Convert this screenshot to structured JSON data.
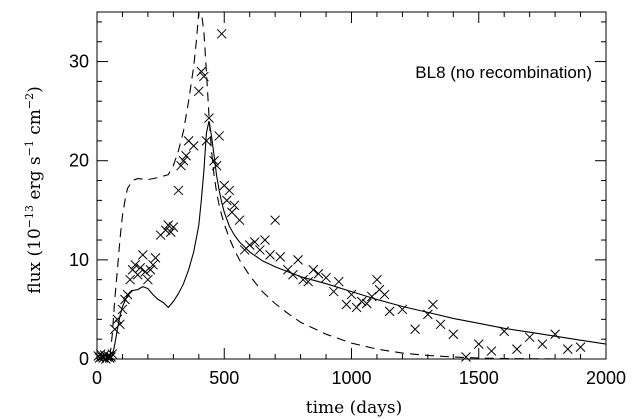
{
  "chart_data": {
    "type": "line",
    "title": "",
    "annotation": "BL8 (no recombination)",
    "xlabel": "time (days)",
    "ylabel": {
      "base": "flux (10",
      "exp1": "−13",
      "mid1": " erg s",
      "exp2": "−1",
      "mid2": " cm",
      "exp3": "−2",
      "tail": ")"
    },
    "xlim": [
      0,
      2000
    ],
    "ylim": [
      0,
      35
    ],
    "xticks": [
      0,
      500,
      1000,
      1500,
      2000
    ],
    "yticks": [
      0,
      10,
      20,
      30
    ],
    "grid": false,
    "series": [
      {
        "style": "solid",
        "x": [
          0,
          50,
          60,
          70,
          80,
          90,
          100,
          120,
          140,
          160,
          180,
          200,
          220,
          240,
          260,
          280,
          300,
          320,
          340,
          360,
          380,
          400,
          410,
          420,
          430,
          440,
          450,
          460,
          470,
          480,
          490,
          500,
          520,
          540,
          560,
          580,
          600,
          650,
          700,
          750,
          800,
          900,
          1000,
          1100,
          1200,
          1300,
          1400,
          1500,
          1600,
          1700,
          1800,
          1900,
          2000
        ],
        "y": [
          0,
          0,
          0.3,
          1.5,
          3.0,
          4.3,
          5.3,
          6.4,
          6.9,
          7.0,
          7.3,
          7.1,
          6.5,
          6.0,
          5.7,
          5.2,
          5.8,
          6.6,
          7.6,
          9.0,
          10.8,
          13.5,
          16.0,
          19.0,
          22.8,
          24.0,
          22.5,
          20.5,
          18.5,
          17.0,
          15.8,
          14.8,
          13.4,
          12.5,
          11.8,
          11.3,
          10.8,
          9.9,
          9.3,
          8.8,
          8.3,
          7.6,
          6.8,
          6.0,
          5.3,
          4.7,
          4.1,
          3.6,
          3.1,
          2.7,
          2.3,
          1.9,
          1.5
        ]
      },
      {
        "style": "dashed",
        "x": [
          0,
          50,
          60,
          70,
          80,
          90,
          100,
          110,
          120,
          140,
          160,
          200,
          240,
          280,
          300,
          320,
          340,
          360,
          380,
          390,
          400,
          410,
          420,
          430,
          440,
          450,
          460,
          470,
          480,
          490,
          500,
          520,
          540,
          560,
          580,
          600,
          650,
          700,
          750,
          800,
          900,
          1000,
          1100,
          1200,
          1300,
          1400,
          1500,
          1600,
          1700,
          1800,
          1900,
          2000
        ],
        "y": [
          0,
          0,
          2.5,
          6.0,
          9.0,
          12.0,
          14.5,
          16.0,
          17.2,
          18.0,
          18.2,
          18.1,
          18.3,
          18.6,
          19.5,
          21.0,
          23.0,
          26.0,
          29.5,
          32.0,
          35,
          35,
          33.0,
          29.0,
          24.5,
          21.0,
          18.5,
          16.8,
          15.5,
          14.5,
          13.6,
          12.2,
          11.0,
          10.0,
          9.2,
          8.4,
          6.8,
          5.6,
          4.6,
          3.7,
          2.5,
          1.6,
          1.0,
          0.6,
          0.35,
          0.2,
          0.1,
          0.05,
          0.02,
          0.01,
          0.0,
          0.0
        ]
      }
    ],
    "points": {
      "marker": "x",
      "x": [
        5,
        10,
        15,
        20,
        25,
        30,
        35,
        40,
        45,
        50,
        55,
        60,
        70,
        80,
        90,
        100,
        110,
        120,
        130,
        140,
        150,
        160,
        170,
        180,
        190,
        200,
        210,
        220,
        230,
        250,
        270,
        280,
        290,
        300,
        320,
        330,
        340,
        350,
        360,
        380,
        400,
        410,
        420,
        430,
        440,
        460,
        470,
        480,
        490,
        500,
        510,
        520,
        530,
        540,
        560,
        580,
        600,
        620,
        640,
        660,
        680,
        700,
        720,
        750,
        770,
        790,
        810,
        830,
        850,
        870,
        900,
        930,
        950,
        980,
        1000,
        1020,
        1040,
        1060,
        1080,
        1100,
        1110,
        1130,
        1150,
        1200,
        1250,
        1300,
        1320,
        1350,
        1400,
        1450,
        1500,
        1550,
        1600,
        1650,
        1700,
        1750,
        1800,
        1850,
        1900
      ],
      "y": [
        0.3,
        0.1,
        0.5,
        0.2,
        0.1,
        0.4,
        0.0,
        0.2,
        0.3,
        0.1,
        0.2,
        0.5,
        3.0,
        4.0,
        3.5,
        5.0,
        6.0,
        6.5,
        8.0,
        9.0,
        9.5,
        8.5,
        9.2,
        10.5,
        8.8,
        8.0,
        9.0,
        9.5,
        10.2,
        12.5,
        13.0,
        13.5,
        12.8,
        13.3,
        17.0,
        19.5,
        20.0,
        20.5,
        22.0,
        21.5,
        27.0,
        29.0,
        28.5,
        22.0,
        24.3,
        20.0,
        19.5,
        22.5,
        32.8,
        17.5,
        16.0,
        17.0,
        14.8,
        15.5,
        14.0,
        11.0,
        11.5,
        11.8,
        11.0,
        12.0,
        10.5,
        14.0,
        10.3,
        9.0,
        8.5,
        10.0,
        8.0,
        7.8,
        9.0,
        8.6,
        8.2,
        6.8,
        7.8,
        5.5,
        6.5,
        5.2,
        5.8,
        5.6,
        6.3,
        8.0,
        7.0,
        6.5,
        4.8,
        5.0,
        3.0,
        4.5,
        5.5,
        3.5,
        2.5,
        0.2,
        1.5,
        0.8,
        2.8,
        1.0,
        2.2,
        1.5,
        2.5,
        1.0,
        1.2
      ]
    }
  }
}
